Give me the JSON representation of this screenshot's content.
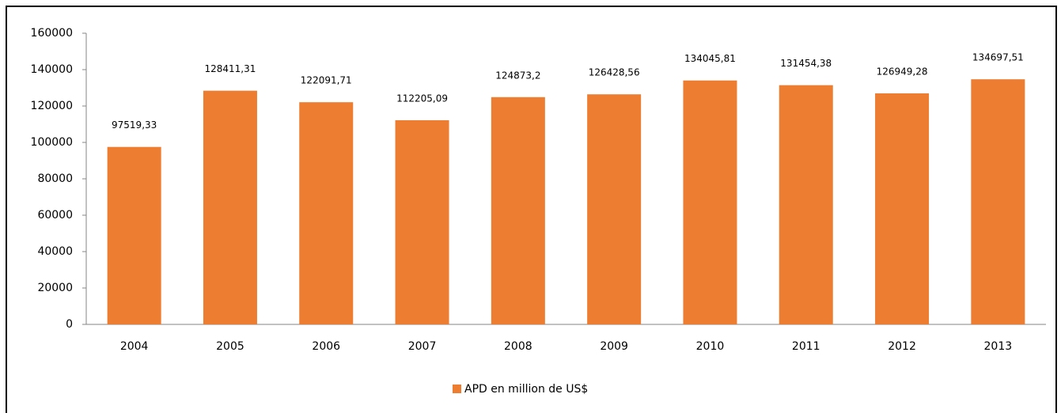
{
  "chart_data": {
    "type": "bar",
    "categories": [
      "2004",
      "2005",
      "2006",
      "2007",
      "2008",
      "2009",
      "2010",
      "2011",
      "2012",
      "2013"
    ],
    "series": [
      {
        "name": "APD en million de US$",
        "color": "#ed7d31",
        "values": [
          97519.33,
          128411.31,
          122091.71,
          112205.09,
          124873.2,
          126428.56,
          134045.81,
          131454.38,
          126949.28,
          134697.51
        ],
        "value_labels": [
          "97519,33",
          "128411,31",
          "122091,71",
          "112205,09",
          "124873,2",
          "126428,56",
          "134045,81",
          "131454,38",
          "126949,28",
          "134697,51"
        ]
      }
    ],
    "ylim": [
      0,
      160000
    ],
    "yticks": [
      0,
      20000,
      40000,
      60000,
      80000,
      100000,
      120000,
      140000,
      160000
    ],
    "legend": "bottom"
  }
}
